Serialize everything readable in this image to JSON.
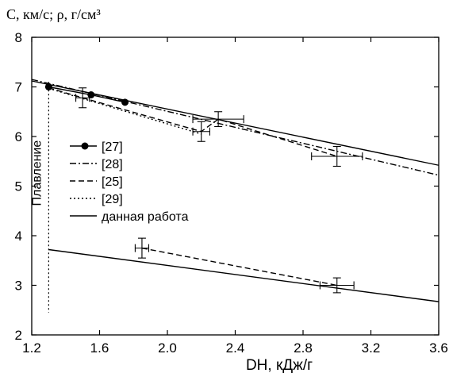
{
  "chart_data": {
    "type": "line",
    "y_title": "C, км/с; ρ, г/см³",
    "x_title": "DH, кДж/г",
    "xlim": [
      1.2,
      3.6
    ],
    "ylim": [
      2,
      8
    ],
    "x_ticks": [
      1.2,
      1.6,
      2.0,
      2.4,
      2.8,
      3.2,
      3.6
    ],
    "y_ticks": [
      2,
      3,
      4,
      5,
      6,
      7,
      8
    ],
    "x_tick_labels": [
      "1.2",
      "1.6",
      "2.0",
      "2.4",
      "2.8",
      "3.2",
      "3.6"
    ],
    "y_tick_labels": [
      "2",
      "3",
      "4",
      "5",
      "6",
      "7",
      "8"
    ],
    "melting_label": "Плавление",
    "melting_x": 1.3,
    "melting_y_range": [
      2.45,
      7.1
    ],
    "legend": [
      {
        "label": "[27]",
        "style": "solid-dot"
      },
      {
        "label": "[28]",
        "style": "dashdot"
      },
      {
        "label": "[25]",
        "style": "dashed"
      },
      {
        "label": "[29]",
        "style": "dotted"
      },
      {
        "label": "данная работа",
        "style": "solid"
      }
    ],
    "series": [
      {
        "name": "[27]",
        "style": "solid-dot",
        "x": [
          1.3,
          1.55,
          1.75
        ],
        "y": [
          7.0,
          6.84,
          6.69
        ]
      },
      {
        "name": "[28]",
        "style": "dashdot",
        "x": [
          1.2,
          3.6
        ],
        "y": [
          7.15,
          5.22
        ]
      },
      {
        "name": "[25]",
        "style": "dashed",
        "x": [
          1.3,
          1.5,
          2.2,
          2.3,
          3.0
        ],
        "y": [
          6.98,
          6.78,
          6.1,
          6.35,
          5.6
        ]
      },
      {
        "name": "[29]",
        "style": "dotted",
        "x": [
          1.3,
          2.2
        ],
        "y": [
          6.97,
          6.05
        ]
      },
      {
        "name": "данная работа",
        "style": "solid",
        "x": [
          1.2,
          3.6
        ],
        "y": [
          7.12,
          5.42
        ]
      },
      {
        "name": "данная работа",
        "style": "solid",
        "x": [
          1.3,
          3.6
        ],
        "y": [
          3.72,
          2.67
        ]
      },
      {
        "name": "[25]",
        "style": "dashed",
        "x": [
          1.85,
          3.0
        ],
        "y": [
          3.75,
          3.0
        ]
      }
    ],
    "error_bars": [
      {
        "x": 1.5,
        "y": 6.78,
        "xerr": 0.04,
        "yerr": 0.2
      },
      {
        "x": 2.2,
        "y": 6.1,
        "xerr": 0.05,
        "yerr": 0.2
      },
      {
        "x": 2.3,
        "y": 6.35,
        "xerr": 0.15,
        "yerr": 0.15
      },
      {
        "x": 3.0,
        "y": 5.6,
        "xerr": 0.15,
        "yerr": 0.2
      },
      {
        "x": 1.85,
        "y": 3.75,
        "xerr": 0.04,
        "yerr": 0.2
      },
      {
        "x": 3.0,
        "y": 3.0,
        "xerr": 0.1,
        "yerr": 0.15
      }
    ],
    "grid": false,
    "legend_position": "left"
  }
}
